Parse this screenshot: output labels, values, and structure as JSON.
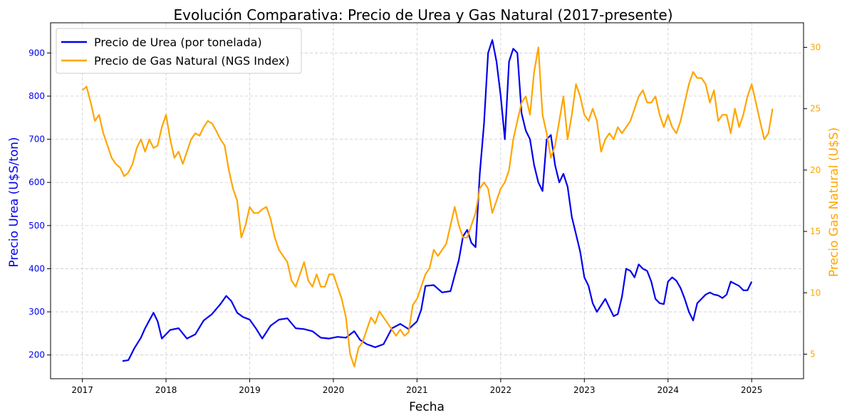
{
  "chart_data": {
    "type": "line",
    "title": "Evolución Comparativa: Precio de Urea y Gas Natural (2017-presente)",
    "xlabel": "Fecha",
    "ylabel_left": "Precio Urea (U$S/ton)",
    "ylabel_right": "Precio Gas Natural (U$S)",
    "xlim": [
      2016.62,
      2025.62
    ],
    "ylim_left": [
      145,
      970
    ],
    "ylim_right": [
      3,
      32
    ],
    "x_ticks": [
      2017,
      2018,
      2019,
      2020,
      2021,
      2022,
      2023,
      2024,
      2025
    ],
    "x_tick_labels": [
      "2017",
      "2018",
      "2019",
      "2020",
      "2021",
      "2022",
      "2023",
      "2024",
      "2025"
    ],
    "y_left_ticks": [
      200,
      300,
      400,
      500,
      600,
      700,
      800,
      900
    ],
    "y_left_tick_labels": [
      "200",
      "300",
      "400",
      "500",
      "600",
      "700",
      "800",
      "900"
    ],
    "y_right_ticks": [
      5,
      10,
      15,
      20,
      25,
      30
    ],
    "y_right_tick_labels": [
      "5",
      "10",
      "15",
      "20",
      "25",
      "30"
    ],
    "grid": true,
    "legend_position": "top-left",
    "colors": {
      "urea": "#0000ee",
      "gas": "#ffa500",
      "grid": "#cccccc"
    },
    "series": [
      {
        "name": "Precio de Urea (por tonelada)",
        "axis": "left",
        "x": [
          2017.48,
          2017.55,
          2017.62,
          2017.7,
          2017.75,
          2017.8,
          2017.85,
          2017.9,
          2017.95,
          2018.05,
          2018.15,
          2018.25,
          2018.35,
          2018.45,
          2018.55,
          2018.65,
          2018.72,
          2018.78,
          2018.85,
          2018.92,
          2019.0,
          2019.08,
          2019.15,
          2019.25,
          2019.35,
          2019.45,
          2019.55,
          2019.65,
          2019.75,
          2019.85,
          2019.95,
          2020.05,
          2020.15,
          2020.25,
          2020.32,
          2020.4,
          2020.5,
          2020.6,
          2020.7,
          2020.8,
          2020.9,
          2021.0,
          2021.05,
          2021.1,
          2021.2,
          2021.3,
          2021.4,
          2021.5,
          2021.55,
          2021.6,
          2021.65,
          2021.7,
          2021.75,
          2021.8,
          2021.85,
          2021.9,
          2021.95,
          2022.0,
          2022.05,
          2022.1,
          2022.15,
          2022.2,
          2022.25,
          2022.3,
          2022.35,
          2022.4,
          2022.45,
          2022.5,
          2022.55,
          2022.6,
          2022.65,
          2022.7,
          2022.75,
          2022.8,
          2022.85,
          2022.9,
          2022.95,
          2023.0,
          2023.05,
          2023.1,
          2023.15,
          2023.2,
          2023.25,
          2023.3,
          2023.35,
          2023.4,
          2023.45,
          2023.5,
          2023.55,
          2023.6,
          2023.65,
          2023.7,
          2023.75,
          2023.8,
          2023.85,
          2023.9,
          2023.95,
          2024.0,
          2024.05,
          2024.1,
          2024.15,
          2024.2,
          2024.25,
          2024.3,
          2024.35,
          2024.4,
          2024.45,
          2024.5,
          2024.55,
          2024.6,
          2024.65,
          2024.7,
          2024.75,
          2024.8,
          2024.85,
          2024.9,
          2024.95,
          2025.0
        ],
        "y": [
          186,
          188,
          215,
          240,
          262,
          280,
          298,
          278,
          238,
          258,
          262,
          238,
          248,
          280,
          295,
          318,
          337,
          325,
          298,
          288,
          282,
          260,
          238,
          268,
          282,
          285,
          262,
          260,
          255,
          240,
          238,
          242,
          240,
          255,
          235,
          225,
          218,
          225,
          262,
          272,
          260,
          278,
          305,
          360,
          362,
          345,
          348,
          420,
          475,
          490,
          460,
          450,
          620,
          735,
          900,
          930,
          880,
          800,
          700,
          880,
          910,
          900,
          760,
          720,
          700,
          640,
          600,
          580,
          700,
          710,
          640,
          600,
          620,
          590,
          520,
          480,
          440,
          380,
          360,
          320,
          300,
          315,
          330,
          310,
          290,
          295,
          335,
          400,
          395,
          380,
          410,
          400,
          395,
          370,
          330,
          320,
          318,
          370,
          380,
          372,
          355,
          330,
          300,
          280,
          320,
          330,
          340,
          345,
          340,
          338,
          332,
          340,
          370,
          365,
          360,
          350,
          350,
          370
        ]
      },
      {
        "name": "Precio de Gas Natural (NGS Index)",
        "axis": "right",
        "x": [
          2017.0,
          2017.05,
          2017.1,
          2017.15,
          2017.2,
          2017.25,
          2017.3,
          2017.35,
          2017.4,
          2017.45,
          2017.5,
          2017.55,
          2017.6,
          2017.65,
          2017.7,
          2017.75,
          2017.8,
          2017.85,
          2017.9,
          2017.95,
          2018.0,
          2018.05,
          2018.1,
          2018.15,
          2018.2,
          2018.25,
          2018.3,
          2018.35,
          2018.4,
          2018.45,
          2018.5,
          2018.55,
          2018.6,
          2018.65,
          2018.7,
          2018.75,
          2018.8,
          2018.85,
          2018.9,
          2018.95,
          2019.0,
          2019.05,
          2019.1,
          2019.15,
          2019.2,
          2019.25,
          2019.3,
          2019.35,
          2019.4,
          2019.45,
          2019.5,
          2019.55,
          2019.6,
          2019.65,
          2019.7,
          2019.75,
          2019.8,
          2019.85,
          2019.9,
          2019.95,
          2020.0,
          2020.05,
          2020.1,
          2020.15,
          2020.2,
          2020.25,
          2020.3,
          2020.35,
          2020.4,
          2020.45,
          2020.5,
          2020.55,
          2020.6,
          2020.65,
          2020.7,
          2020.75,
          2020.8,
          2020.85,
          2020.9,
          2020.95,
          2021.0,
          2021.05,
          2021.1,
          2021.15,
          2021.2,
          2021.25,
          2021.3,
          2021.35,
          2021.4,
          2021.45,
          2021.5,
          2021.55,
          2021.6,
          2021.65,
          2021.7,
          2021.75,
          2021.8,
          2021.85,
          2021.9,
          2021.95,
          2022.0,
          2022.05,
          2022.1,
          2022.15,
          2022.2,
          2022.25,
          2022.3,
          2022.35,
          2022.4,
          2022.45,
          2022.5,
          2022.55,
          2022.6,
          2022.65,
          2022.7,
          2022.75,
          2022.8,
          2022.85,
          2022.9,
          2022.95,
          2023.0,
          2023.05,
          2023.1,
          2023.15,
          2023.2,
          2023.25,
          2023.3,
          2023.35,
          2023.4,
          2023.45,
          2023.5,
          2023.55,
          2023.6,
          2023.65,
          2023.7,
          2023.75,
          2023.8,
          2023.85,
          2023.9,
          2023.95,
          2024.0,
          2024.05,
          2024.1,
          2024.15,
          2024.2,
          2024.25,
          2024.3,
          2024.35,
          2024.4,
          2024.45,
          2024.5,
          2024.55,
          2024.6,
          2024.65,
          2024.7,
          2024.75,
          2024.8,
          2024.85,
          2024.9,
          2024.95,
          2025.0,
          2025.05,
          2025.1,
          2025.15,
          2025.2,
          2025.25
        ],
        "y": [
          26.5,
          26.8,
          25.5,
          24.0,
          24.5,
          23.0,
          22.0,
          21.0,
          20.5,
          20.2,
          19.5,
          19.8,
          20.5,
          21.8,
          22.5,
          21.5,
          22.5,
          21.8,
          22.0,
          23.5,
          24.5,
          22.5,
          21.0,
          21.5,
          20.5,
          21.5,
          22.5,
          23.0,
          22.8,
          23.5,
          24.0,
          23.8,
          23.2,
          22.5,
          22.0,
          20.0,
          18.5,
          17.5,
          14.5,
          15.5,
          17.0,
          16.5,
          16.5,
          16.8,
          17.0,
          16.0,
          14.5,
          13.5,
          13.0,
          12.5,
          11.0,
          10.5,
          11.5,
          12.5,
          11.0,
          10.5,
          11.5,
          10.5,
          10.5,
          11.5,
          11.5,
          10.5,
          9.5,
          8.0,
          5.0,
          4.0,
          5.5,
          6.0,
          7.0,
          8.0,
          7.5,
          8.5,
          8.0,
          7.5,
          7.0,
          6.5,
          7.0,
          6.5,
          6.8,
          9.0,
          9.5,
          10.5,
          11.5,
          12.0,
          13.5,
          13.0,
          13.5,
          14.0,
          15.5,
          17.0,
          15.5,
          14.5,
          14.5,
          15.5,
          16.5,
          18.5,
          19.0,
          18.5,
          16.5,
          17.5,
          18.5,
          19.0,
          20.0,
          22.5,
          24.0,
          25.5,
          26.0,
          24.5,
          28.0,
          30.0,
          24.5,
          23.0,
          21.0,
          22.0,
          24.0,
          26.0,
          22.5,
          24.5,
          27.0,
          26.0,
          24.5,
          24.0,
          25.0,
          24.0,
          21.5,
          22.5,
          23.0,
          22.5,
          23.5,
          23.0,
          23.5,
          24.0,
          25.0,
          26.0,
          26.5,
          25.5,
          25.5,
          26.0,
          24.5,
          23.5,
          24.5,
          23.5,
          23.0,
          24.0,
          25.5,
          27.0,
          28.0,
          27.5,
          27.5,
          27.0,
          25.5,
          26.5,
          24.0,
          24.5,
          24.5,
          23.0,
          25.0,
          23.5,
          24.5,
          26.0,
          27.0,
          25.5,
          24.0,
          22.5,
          23.0,
          25.0
        ]
      }
    ]
  }
}
